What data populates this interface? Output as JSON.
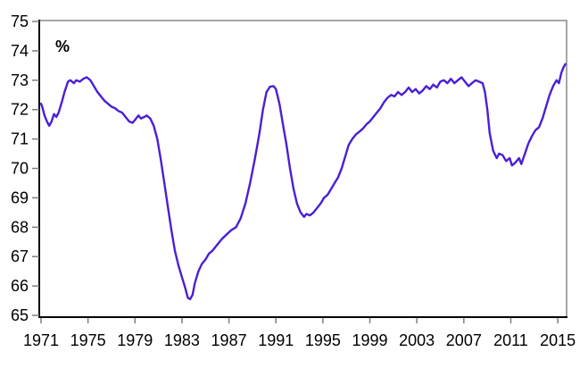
{
  "figure": {
    "unit_label": "%"
  },
  "chart_data": {
    "type": "line",
    "title": "",
    "xlabel": "",
    "ylabel": "%",
    "legend": "none",
    "grid": "off",
    "xlim": [
      1970.85,
      2015.75
    ],
    "ylim": [
      65,
      75
    ],
    "x_ticks": [
      1971,
      1975,
      1979,
      1983,
      1987,
      1991,
      1995,
      1999,
      2003,
      2007,
      2011,
      2015
    ],
    "y_ticks": [
      65,
      66,
      67,
      68,
      69,
      70,
      71,
      72,
      73,
      74,
      75
    ],
    "line_color": "#4a1fd4",
    "axis_color_left_bottom": "#000000",
    "axis_color_top_right": "#a6a6a6",
    "tick_color": "#7f7f7f",
    "series": [
      {
        "name": "rate_percent",
        "points": [
          [
            1971.0,
            72.2
          ],
          [
            1971.1,
            72.1
          ],
          [
            1971.3,
            71.8
          ],
          [
            1971.5,
            71.6
          ],
          [
            1971.7,
            71.45
          ],
          [
            1971.9,
            71.6
          ],
          [
            1972.1,
            71.85
          ],
          [
            1972.3,
            71.75
          ],
          [
            1972.5,
            71.9
          ],
          [
            1972.8,
            72.3
          ],
          [
            1973.0,
            72.6
          ],
          [
            1973.3,
            72.95
          ],
          [
            1973.5,
            73.0
          ],
          [
            1973.8,
            72.9
          ],
          [
            1974.0,
            73.0
          ],
          [
            1974.3,
            72.95
          ],
          [
            1974.6,
            73.05
          ],
          [
            1974.9,
            73.1
          ],
          [
            1975.2,
            73.0
          ],
          [
            1975.5,
            72.8
          ],
          [
            1975.8,
            72.6
          ],
          [
            1976.1,
            72.45
          ],
          [
            1976.4,
            72.3
          ],
          [
            1976.7,
            72.2
          ],
          [
            1977.0,
            72.1
          ],
          [
            1977.3,
            72.05
          ],
          [
            1977.6,
            71.95
          ],
          [
            1977.9,
            71.9
          ],
          [
            1978.2,
            71.75
          ],
          [
            1978.5,
            71.6
          ],
          [
            1978.8,
            71.55
          ],
          [
            1979.0,
            71.65
          ],
          [
            1979.3,
            71.8
          ],
          [
            1979.5,
            71.7
          ],
          [
            1979.8,
            71.75
          ],
          [
            1980.0,
            71.8
          ],
          [
            1980.3,
            71.7
          ],
          [
            1980.6,
            71.45
          ],
          [
            1980.9,
            71.0
          ],
          [
            1981.2,
            70.3
          ],
          [
            1981.5,
            69.5
          ],
          [
            1981.8,
            68.7
          ],
          [
            1982.1,
            67.9
          ],
          [
            1982.4,
            67.2
          ],
          [
            1982.7,
            66.7
          ],
          [
            1983.0,
            66.3
          ],
          [
            1983.3,
            65.9
          ],
          [
            1983.5,
            65.6
          ],
          [
            1983.7,
            65.55
          ],
          [
            1983.9,
            65.7
          ],
          [
            1984.1,
            66.1
          ],
          [
            1984.4,
            66.5
          ],
          [
            1984.7,
            66.75
          ],
          [
            1985.0,
            66.9
          ],
          [
            1985.3,
            67.1
          ],
          [
            1985.6,
            67.2
          ],
          [
            1986.0,
            67.4
          ],
          [
            1986.4,
            67.6
          ],
          [
            1986.8,
            67.75
          ],
          [
            1987.2,
            67.9
          ],
          [
            1987.6,
            68.0
          ],
          [
            1988.0,
            68.3
          ],
          [
            1988.4,
            68.8
          ],
          [
            1988.8,
            69.5
          ],
          [
            1989.2,
            70.3
          ],
          [
            1989.6,
            71.2
          ],
          [
            1989.9,
            72.0
          ],
          [
            1990.2,
            72.6
          ],
          [
            1990.5,
            72.78
          ],
          [
            1990.8,
            72.8
          ],
          [
            1991.0,
            72.7
          ],
          [
            1991.3,
            72.2
          ],
          [
            1991.6,
            71.5
          ],
          [
            1991.9,
            70.8
          ],
          [
            1992.2,
            70.0
          ],
          [
            1992.5,
            69.3
          ],
          [
            1992.8,
            68.8
          ],
          [
            1993.1,
            68.5
          ],
          [
            1993.4,
            68.35
          ],
          [
            1993.6,
            68.45
          ],
          [
            1993.9,
            68.4
          ],
          [
            1994.2,
            68.5
          ],
          [
            1994.5,
            68.65
          ],
          [
            1994.8,
            68.8
          ],
          [
            1995.1,
            69.0
          ],
          [
            1995.4,
            69.1
          ],
          [
            1995.7,
            69.3
          ],
          [
            1996.0,
            69.5
          ],
          [
            1996.3,
            69.7
          ],
          [
            1996.6,
            70.0
          ],
          [
            1996.9,
            70.4
          ],
          [
            1997.2,
            70.8
          ],
          [
            1997.5,
            71.0
          ],
          [
            1997.8,
            71.15
          ],
          [
            1998.1,
            71.25
          ],
          [
            1998.4,
            71.35
          ],
          [
            1998.7,
            71.5
          ],
          [
            1999.0,
            71.6
          ],
          [
            1999.3,
            71.75
          ],
          [
            1999.6,
            71.9
          ],
          [
            1999.9,
            72.05
          ],
          [
            2000.2,
            72.25
          ],
          [
            2000.5,
            72.4
          ],
          [
            2000.8,
            72.5
          ],
          [
            2001.1,
            72.45
          ],
          [
            2001.4,
            72.6
          ],
          [
            2001.7,
            72.5
          ],
          [
            2002.0,
            72.6
          ],
          [
            2002.3,
            72.75
          ],
          [
            2002.6,
            72.6
          ],
          [
            2002.9,
            72.7
          ],
          [
            2003.2,
            72.55
          ],
          [
            2003.5,
            72.65
          ],
          [
            2003.8,
            72.8
          ],
          [
            2004.1,
            72.7
          ],
          [
            2004.4,
            72.85
          ],
          [
            2004.7,
            72.75
          ],
          [
            2005.0,
            72.95
          ],
          [
            2005.3,
            73.0
          ],
          [
            2005.6,
            72.9
          ],
          [
            2005.9,
            73.05
          ],
          [
            2006.2,
            72.9
          ],
          [
            2006.5,
            73.0
          ],
          [
            2006.8,
            73.1
          ],
          [
            2007.1,
            72.95
          ],
          [
            2007.4,
            72.8
          ],
          [
            2007.7,
            72.9
          ],
          [
            2008.0,
            73.0
          ],
          [
            2008.3,
            72.95
          ],
          [
            2008.6,
            72.9
          ],
          [
            2008.8,
            72.6
          ],
          [
            2009.0,
            72.0
          ],
          [
            2009.2,
            71.2
          ],
          [
            2009.5,
            70.6
          ],
          [
            2009.8,
            70.35
          ],
          [
            2010.0,
            70.5
          ],
          [
            2010.3,
            70.45
          ],
          [
            2010.6,
            70.25
          ],
          [
            2010.9,
            70.35
          ],
          [
            2011.1,
            70.1
          ],
          [
            2011.4,
            70.2
          ],
          [
            2011.7,
            70.35
          ],
          [
            2011.9,
            70.15
          ],
          [
            2012.2,
            70.5
          ],
          [
            2012.5,
            70.85
          ],
          [
            2012.8,
            71.1
          ],
          [
            2013.1,
            71.3
          ],
          [
            2013.4,
            71.4
          ],
          [
            2013.7,
            71.7
          ],
          [
            2014.0,
            72.1
          ],
          [
            2014.3,
            72.5
          ],
          [
            2014.6,
            72.8
          ],
          [
            2014.9,
            73.0
          ],
          [
            2015.1,
            72.9
          ],
          [
            2015.3,
            73.25
          ],
          [
            2015.5,
            73.45
          ],
          [
            2015.65,
            73.55
          ]
        ]
      }
    ]
  }
}
